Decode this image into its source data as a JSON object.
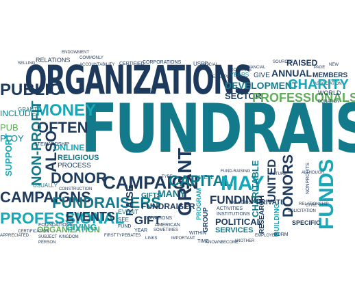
{
  "colors": {
    "navy": "#1d3a5c",
    "teal": "#137a8c",
    "cyan": "#17a7b7",
    "green": "#5fae57",
    "lightblue": "#4fa9d6",
    "darkteal": "#0e5f6f"
  },
  "words": {
    "fundraising": "FUNDRAISING",
    "organizations": "ORGANIZATIONS",
    "campaign": "CAMPAIGN",
    "campaigns": "CAMPAIGNS",
    "fundraisers": "FUNDRAISERS",
    "professional": "PROFESSIONAL",
    "professionals": "PROFESSIONALS",
    "money": "MONEY",
    "often": "OFTEN",
    "donor": "DONOR",
    "donors": "DONORS",
    "funds": "FUNDS",
    "funding": "FUNDING",
    "charity": "CHARITY",
    "development": "DEVELOPMENT",
    "non_profit": "NON-PROFIT",
    "also": "ALSO",
    "capital": "CAPITAL",
    "may": "MAY",
    "raise": "RAISE",
    "grant": "GRANT",
    "events": "EVENTS",
    "gift": "GIFT",
    "many": "MANY",
    "fundraiser": "FUNDRAISER",
    "program": "PROGRAM",
    "organization": "ORGANIZATION",
    "charitable": "CHARITABLE",
    "united": "UNITED",
    "research": "RESEARCH",
    "building": "BUILDING",
    "specific": "SPECIFIC",
    "political": "POLITICAL",
    "services": "SERVICES",
    "private": "PRIVATE",
    "sector": "SECTOR",
    "annual": "ANNUAL",
    "public": "PUBLIC",
    "online": "ONLINE",
    "religious": "RELIGIOUS",
    "process": "PROCESS",
    "giving": "GIVING",
    "relations": "RELATIONS",
    "raised": "RAISED",
    "members": "MEMBERS",
    "world": "WORLD",
    "donations": "DONATIONS",
    "certified": "CERTIFIED",
    "corporations": "CORPORATIONS",
    "used": "USED",
    "years": "YEARS",
    "give": "GIVE",
    "grants": "GRANTS",
    "support": "SUPPORT",
    "usually": "USUALLY",
    "foundations": "FOUNDATIONS",
    "event": "EVENT",
    "american": "AMERICAN",
    "group": "GROUP",
    "within": "WITHIN",
    "fund": "FUND",
    "see": "SEE",
    "include": "INCLUDE",
    "pub": "PUB",
    "ploy": "PLOY",
    "activities": "ACTIVITIES",
    "institutions": "INSTITUTIONS",
    "gifts": "GIFTS",
    "time": "TIME",
    "form": "FORM",
    "type": "TYPE",
    "well": "WELL",
    "example": "EXAMPLE",
    "stewardship": "STEWARDSHIP",
    "construction": "CONSTRUCTION",
    "certification": "CERTIFICATION",
    "subject": "SUBJECT",
    "kingdom": "KINGDOM",
    "person": "PERSON",
    "important": "IMPORTANT",
    "known": "KNOWN",
    "become": "BECOME",
    "another": "ANOTHER",
    "employee": "EMPLOYEE",
    "first": "FIRST",
    "types": "TYPES",
    "rates": "RATES",
    "links": "LINKS",
    "sometimes": "SOMETIMES",
    "year": "YEAR",
    "association": "ASSOCIATION",
    "page": "PAGE",
    "sources": "SOURCES",
    "financial": "FINANCIAL",
    "programs": "PROGRAMS",
    "nonprofits": "NONPROFITS",
    "including": "INCLUDING",
    "solicitation": "SOLICITATION",
    "relationship": "RELATIONSHIP",
    "future": "FUTURE",
    "although": "ALTHOUGH",
    "endowment": "ENDOWMENT",
    "commonly": "COMMONLY",
    "accountability": "ACCOUNTABILITY",
    "fund_raising": "FUND-RAISING",
    "selling": "SELLING",
    "new": "NEW",
    "donation": "DONATION",
    "ways": "WAYS",
    "cfre": "CFRE",
    "appreciated": "APPRECIATED",
    "like": "LIKE",
    "individuals": "INDIVIDUALS",
    "issues": "ISSUES",
    "methods": "METHODS",
    "provide": "PROVIDE",
    "social": "SOCIAL",
    "universities": "UNIVERSITIES",
    "schools": "SCHOOLS",
    "volunteers": "VOLUNTEERS"
  }
}
